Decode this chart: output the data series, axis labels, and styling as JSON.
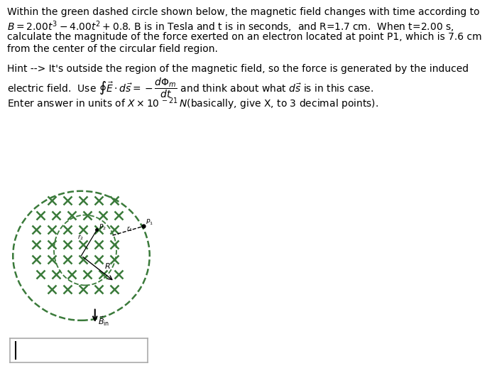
{
  "bg_color": "#ffffff",
  "text_color": "#000000",
  "fig_width": 6.93,
  "fig_height": 5.15,
  "dpi": 100,
  "image_bg": "#c4b49a",
  "circle_color": "#3a7a3a",
  "x_color": "#3a7a3a",
  "text_fontsize": 10.0,
  "small_fontsize": 7.5,
  "lines": [
    "Within the green dashed circle shown below, the magnetic field changes with time according to",
    "$B = 2.00t^3 - 4.00t^2 + 0.8$. B is in Tesla and t is in seconds,  and R=1.7 cm.  When t=2.00 s,",
    "calculate the magnitude of the force exerted on an electron located at point P1, which is 7.6 cm",
    "from the center of the circular field region."
  ],
  "hint_lines": [
    "Hint --> It's outside the region of the magnetic field, so the force is generated by the induced",
    "electric field.  Use $\\oint \\vec{E} \\cdot d\\vec{s} = -\\dfrac{d\\Phi_m}{dt}$ and think about what $d\\vec{s}$ is in this case."
  ],
  "enter_line": "Enter answer in units of $X \\times 10^{\\,-21}\\,N$(basically, give X, to 3 decimal points)."
}
